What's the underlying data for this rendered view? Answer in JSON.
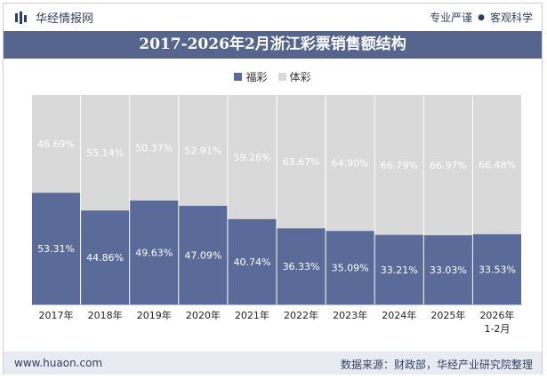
{
  "header": {
    "brand": "华经情报网",
    "slogan_left": "专业严谨",
    "slogan_right": "客观科学"
  },
  "footer": {
    "url": "www.huaon.com",
    "source": "数据来源：财政部，华经产业研究院整理"
  },
  "colors": {
    "title_bar": "#55658e",
    "welfare": "#5a6a99",
    "sports": "#d9d9d9",
    "brand": "#2f3f62"
  },
  "chart_data": {
    "type": "bar",
    "stacked": true,
    "percent": true,
    "title": "2017-2026年2月浙江彩票销售额结构",
    "categories": [
      "2017年",
      "2018年",
      "2019年",
      "2020年",
      "2021年",
      "2022年",
      "2023年",
      "2024年",
      "2025年",
      "2026年\n1-2月"
    ],
    "series": [
      {
        "name": "福彩",
        "color": "#5a6a99",
        "values": [
          53.31,
          44.86,
          49.63,
          47.09,
          40.74,
          36.33,
          35.09,
          33.21,
          33.03,
          33.53
        ]
      },
      {
        "name": "体彩",
        "color": "#d9d9d9",
        "values": [
          46.69,
          55.14,
          50.37,
          52.91,
          59.26,
          63.67,
          64.9,
          66.79,
          66.97,
          66.48
        ]
      }
    ],
    "ylim": [
      0,
      100
    ],
    "value_format": "percent_2dp",
    "legend": "top-center",
    "grid": false
  }
}
